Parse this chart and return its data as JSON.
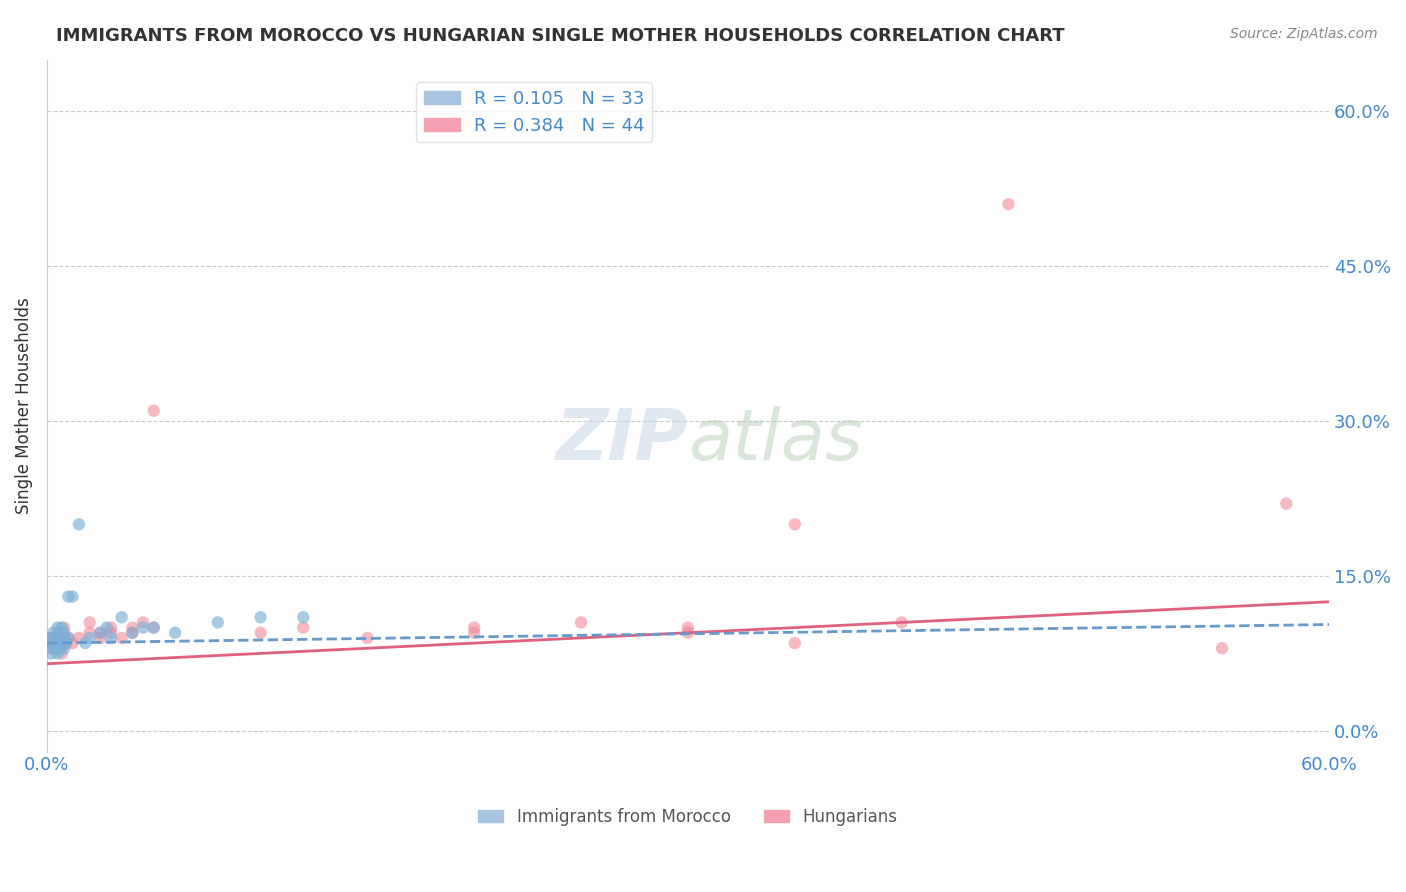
{
  "title": "IMMIGRANTS FROM MOROCCO VS HUNGARIAN SINGLE MOTHER HOUSEHOLDS CORRELATION CHART",
  "source": "Source: ZipAtlas.com",
  "ylabel": "Single Mother Households",
  "xlim": [
    0.0,
    0.6
  ],
  "ylim": [
    -0.02,
    0.65
  ],
  "yticks": [
    0.0,
    0.15,
    0.3,
    0.45,
    0.6
  ],
  "xticks": [
    0.0,
    0.6
  ],
  "morocco_scatter": [
    [
      0.001,
      0.085
    ],
    [
      0.002,
      0.075
    ],
    [
      0.002,
      0.09
    ],
    [
      0.003,
      0.095
    ],
    [
      0.003,
      0.08
    ],
    [
      0.004,
      0.085
    ],
    [
      0.004,
      0.09
    ],
    [
      0.005,
      0.1
    ],
    [
      0.005,
      0.075
    ],
    [
      0.006,
      0.08
    ],
    [
      0.006,
      0.085
    ],
    [
      0.007,
      0.09
    ],
    [
      0.007,
      0.1
    ],
    [
      0.008,
      0.095
    ],
    [
      0.008,
      0.08
    ],
    [
      0.009,
      0.085
    ],
    [
      0.01,
      0.09
    ],
    [
      0.01,
      0.13
    ],
    [
      0.012,
      0.13
    ],
    [
      0.015,
      0.2
    ],
    [
      0.018,
      0.085
    ],
    [
      0.02,
      0.09
    ],
    [
      0.025,
      0.095
    ],
    [
      0.028,
      0.1
    ],
    [
      0.03,
      0.09
    ],
    [
      0.035,
      0.11
    ],
    [
      0.04,
      0.095
    ],
    [
      0.045,
      0.1
    ],
    [
      0.05,
      0.1
    ],
    [
      0.06,
      0.095
    ],
    [
      0.08,
      0.105
    ],
    [
      0.1,
      0.11
    ],
    [
      0.12,
      0.11
    ]
  ],
  "hungarian_scatter": [
    [
      0.001,
      0.085
    ],
    [
      0.002,
      0.08
    ],
    [
      0.002,
      0.09
    ],
    [
      0.003,
      0.085
    ],
    [
      0.003,
      0.09
    ],
    [
      0.004,
      0.08
    ],
    [
      0.004,
      0.085
    ],
    [
      0.005,
      0.09
    ],
    [
      0.005,
      0.095
    ],
    [
      0.006,
      0.08
    ],
    [
      0.007,
      0.075
    ],
    [
      0.007,
      0.085
    ],
    [
      0.008,
      0.09
    ],
    [
      0.008,
      0.1
    ],
    [
      0.009,
      0.085
    ],
    [
      0.01,
      0.09
    ],
    [
      0.012,
      0.085
    ],
    [
      0.015,
      0.09
    ],
    [
      0.02,
      0.095
    ],
    [
      0.02,
      0.105
    ],
    [
      0.025,
      0.09
    ],
    [
      0.025,
      0.095
    ],
    [
      0.03,
      0.1
    ],
    [
      0.03,
      0.095
    ],
    [
      0.035,
      0.09
    ],
    [
      0.04,
      0.095
    ],
    [
      0.04,
      0.1
    ],
    [
      0.045,
      0.105
    ],
    [
      0.05,
      0.1
    ],
    [
      0.05,
      0.31
    ],
    [
      0.1,
      0.095
    ],
    [
      0.12,
      0.1
    ],
    [
      0.15,
      0.09
    ],
    [
      0.2,
      0.095
    ],
    [
      0.2,
      0.1
    ],
    [
      0.25,
      0.105
    ],
    [
      0.3,
      0.1
    ],
    [
      0.3,
      0.095
    ],
    [
      0.35,
      0.2
    ],
    [
      0.35,
      0.085
    ],
    [
      0.4,
      0.105
    ],
    [
      0.45,
      0.51
    ],
    [
      0.55,
      0.08
    ],
    [
      0.58,
      0.22
    ]
  ],
  "morocco_slope": 0.03,
  "morocco_intercept": 0.085,
  "morocco_line_color": "#6699cc",
  "hungarian_slope": 0.1,
  "hungarian_intercept": 0.065,
  "hungarian_line_color": "#e06080",
  "background_color": "#ffffff",
  "grid_color": "#cccccc",
  "scatter_blue": "#7ab0d8",
  "scatter_pink": "#f08090",
  "title_color": "#333333",
  "axis_label_color": "#333333",
  "tick_color": "#4488cc",
  "source_color": "#888888",
  "legend1_label": "R = 0.105   N = 33",
  "legend2_label": "R = 0.384   N = 44",
  "legend1_color": "#a8c4e0",
  "legend2_color": "#f4a0b0",
  "bottom_legend1": "Immigrants from Morocco",
  "bottom_legend2": "Hungarians"
}
